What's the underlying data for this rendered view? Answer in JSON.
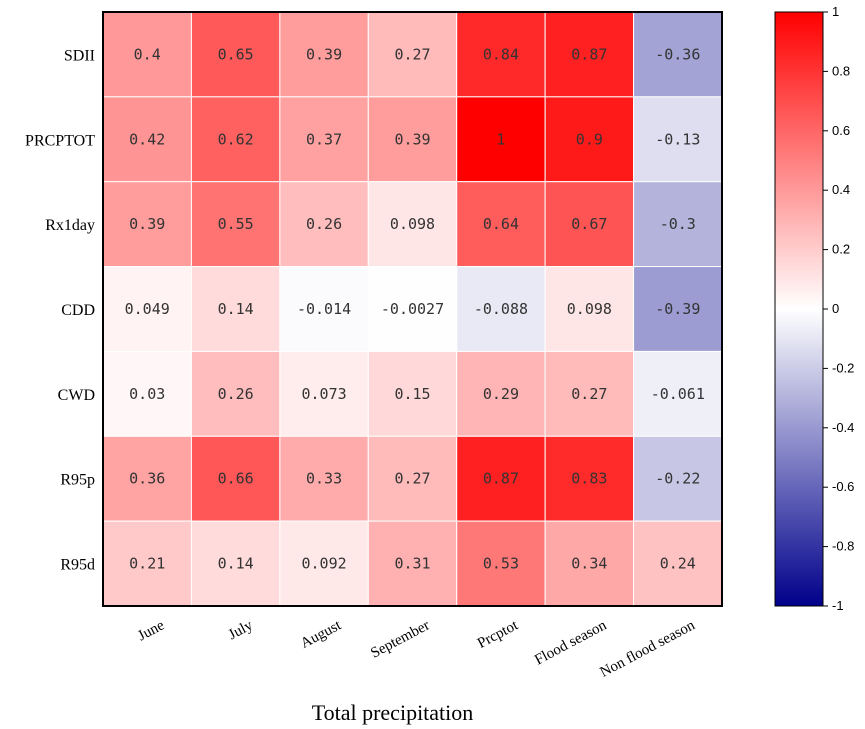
{
  "chart_data": {
    "type": "heatmap",
    "xlabel": "Total precipitation",
    "ylabel": "",
    "rows": [
      "SDII",
      "PRCPTOT",
      "Rx1day",
      "CDD",
      "CWD",
      "R95p",
      "R95d"
    ],
    "columns": [
      "June",
      "July",
      "August",
      "September",
      "Prcptot",
      "Flood season",
      "Non flood season"
    ],
    "values": [
      [
        0.4,
        0.65,
        0.39,
        0.27,
        0.84,
        0.87,
        -0.36
      ],
      [
        0.42,
        0.62,
        0.37,
        0.39,
        1,
        0.9,
        -0.13
      ],
      [
        0.39,
        0.55,
        0.26,
        0.098,
        0.64,
        0.67,
        -0.3
      ],
      [
        0.049,
        0.14,
        -0.014,
        -0.0027,
        -0.088,
        0.098,
        -0.39
      ],
      [
        0.03,
        0.26,
        0.073,
        0.15,
        0.29,
        0.27,
        -0.061
      ],
      [
        0.36,
        0.66,
        0.33,
        0.27,
        0.87,
        0.83,
        -0.22
      ],
      [
        0.21,
        0.14,
        0.092,
        0.31,
        0.53,
        0.34,
        0.24
      ]
    ],
    "labels": [
      [
        "0.4",
        "0.65",
        "0.39",
        "0.27",
        "0.84",
        "0.87",
        "-0.36"
      ],
      [
        "0.42",
        "0.62",
        "0.37",
        "0.39",
        "1",
        "0.9",
        "-0.13"
      ],
      [
        "0.39",
        "0.55",
        "0.26",
        "0.098",
        "0.64",
        "0.67",
        "-0.3"
      ],
      [
        "0.049",
        "0.14",
        "-0.014",
        "-0.0027",
        "-0.088",
        "0.098",
        "-0.39"
      ],
      [
        "0.03",
        "0.26",
        "0.073",
        "0.15",
        "0.29",
        "0.27",
        "-0.061"
      ],
      [
        "0.36",
        "0.66",
        "0.33",
        "0.27",
        "0.87",
        "0.83",
        "-0.22"
      ],
      [
        "0.21",
        "0.14",
        "0.092",
        "0.31",
        "0.53",
        "0.34",
        "0.24"
      ]
    ],
    "colorbar": {
      "range": [
        -1,
        1
      ],
      "ticks": [
        1,
        0.8,
        0.6,
        0.4,
        0.2,
        0,
        -0.2,
        -0.4,
        -0.6,
        -0.8,
        -1
      ],
      "tick_labels": [
        "1",
        "0.8",
        "0.6",
        "0.4",
        "0.2",
        "0",
        "-0.2",
        "-0.4",
        "-0.6",
        "-0.8",
        "-1"
      ],
      "colors": {
        "positive": "#ff0000",
        "zero": "#ffffff",
        "negative": "#00008b"
      }
    }
  }
}
